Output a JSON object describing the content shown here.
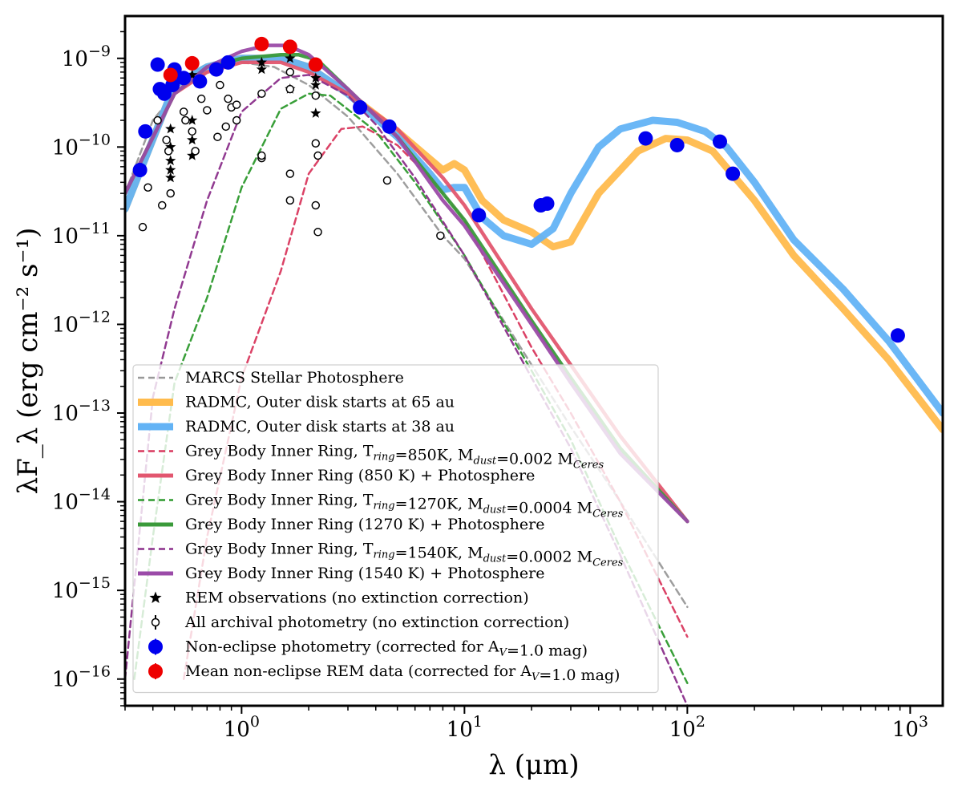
{
  "chart_data": {
    "type": "line",
    "xlabel": "λ (μm)",
    "ylabel": "λF_λ (erg cm⁻² s⁻¹)",
    "x_scale": "log",
    "y_scale": "log",
    "xlim": [
      0.3,
      1400
    ],
    "ylim": [
      5e-17,
      3e-09
    ],
    "grid": false,
    "legend_position": "lower-left",
    "x_ticks": [
      {
        "value": 1,
        "base": "10",
        "exp": "0"
      },
      {
        "value": 10,
        "base": "10",
        "exp": "1"
      },
      {
        "value": 100,
        "base": "10",
        "exp": "2"
      },
      {
        "value": 1000,
        "base": "10",
        "exp": "3"
      }
    ],
    "y_ticks": [
      {
        "value": 1e-16,
        "base": "10",
        "exp": "−16"
      },
      {
        "value": 1e-15,
        "base": "10",
        "exp": "−15"
      },
      {
        "value": 1e-14,
        "base": "10",
        "exp": "−14"
      },
      {
        "value": 1e-13,
        "base": "10",
        "exp": "−13"
      },
      {
        "value": 1e-12,
        "base": "10",
        "exp": "−12"
      },
      {
        "value": 1e-11,
        "base": "10",
        "exp": "−11"
      },
      {
        "value": 1e-10,
        "base": "10",
        "exp": "−10"
      },
      {
        "value": 1e-09,
        "base": "10",
        "exp": "−9"
      }
    ],
    "series": [
      {
        "name": "MARCS Stellar Photosphere",
        "color": "#999999",
        "style": "dashed",
        "width": 2.5,
        "x": [
          0.3,
          0.4,
          0.5,
          0.7,
          1.0,
          1.4,
          2.0,
          3.0,
          5.0,
          8.0,
          10,
          20,
          30,
          50,
          100
        ],
        "y": [
          3e-11,
          2e-10,
          4e-10,
          7e-10,
          9e-10,
          8e-10,
          5e-10,
          2.2e-10,
          5e-11,
          1e-11,
          5.5e-12,
          3.5e-13,
          7e-14,
          1e-14,
          6.5e-16
        ]
      },
      {
        "name": "RADMC, Outer disk starts at 65 au",
        "color": "#FFBB4D",
        "style": "solid",
        "width": 9,
        "x": [
          0.3,
          0.5,
          0.7,
          1.0,
          1.5,
          2.0,
          3.0,
          5.0,
          8.0,
          9.0,
          10,
          12,
          15,
          20,
          25,
          30,
          40,
          60,
          80,
          100,
          130,
          200,
          300,
          500,
          800,
          1400
        ],
        "y": [
          2e-11,
          5e-10,
          8e-10,
          1e-09,
          1e-09,
          8e-10,
          4e-10,
          1.5e-10,
          5.5e-11,
          6.5e-11,
          5.5e-11,
          2.5e-11,
          1.5e-11,
          1.1e-11,
          7.5e-12,
          8.5e-12,
          3e-11,
          9e-11,
          1.25e-10,
          1.2e-10,
          9e-11,
          2.5e-11,
          6e-12,
          1.5e-12,
          4e-13,
          6.5e-14
        ]
      },
      {
        "name": "RADMC, Outer disk starts at 38 au",
        "color": "#63B3F5",
        "style": "solid",
        "width": 9,
        "x": [
          0.3,
          0.5,
          0.7,
          1.0,
          1.5,
          2.0,
          3.0,
          5.0,
          7.0,
          8.0,
          9.0,
          10,
          12,
          15,
          20,
          25,
          30,
          40,
          50,
          70,
          90,
          120,
          150,
          200,
          300,
          500,
          800,
          1400
        ],
        "y": [
          2e-11,
          5e-10,
          8e-10,
          1e-09,
          1e-09,
          8e-10,
          4e-10,
          1.3e-10,
          5e-11,
          3.3e-11,
          3.5e-11,
          3.5e-11,
          1.6e-11,
          1e-11,
          8e-12,
          1.2e-11,
          3e-11,
          1e-10,
          1.6e-10,
          2e-10,
          1.9e-10,
          1.5e-10,
          1e-10,
          4e-11,
          9e-12,
          2.5e-12,
          6.5e-13,
          1e-13
        ]
      },
      {
        "name": "Grey Body Inner Ring, T_ring=850K, M_dust=0.002 M_Ceres",
        "color": "#D9385E",
        "style": "dashed",
        "width": 2.5,
        "x": [
          0.55,
          0.7,
          1.0,
          1.5,
          2.0,
          2.8,
          3.5,
          5.0,
          7.0,
          10,
          20,
          30,
          50,
          100
        ],
        "y": [
          1e-16,
          4e-15,
          2.5e-13,
          4e-12,
          5e-11,
          1.6e-10,
          1.7e-10,
          1.05e-10,
          4.5e-11,
          1.5e-11,
          5.5e-13,
          1e-13,
          1e-14,
          3e-16
        ]
      },
      {
        "name": "Grey Body Inner Ring (850 K) + Photosphere",
        "color": "#E2566F",
        "style": "solid",
        "width": 4.5,
        "x": [
          0.3,
          0.5,
          0.7,
          1.0,
          1.5,
          2.0,
          3.0,
          5.0,
          8.0,
          10,
          20,
          30,
          50,
          100
        ],
        "y": [
          3e-11,
          4e-10,
          7e-10,
          9e-10,
          9e-10,
          7e-10,
          4e-10,
          1.6e-10,
          4.5e-11,
          2.2e-11,
          1.5e-12,
          3.5e-13,
          5.5e-14,
          6e-15
        ]
      },
      {
        "name": "Grey Body Inner Ring, T_ring=1270K, M_dust=0.0004 M_Ceres",
        "color": "#2E9A2E",
        "style": "dashed",
        "width": 2.5,
        "x": [
          0.33,
          0.4,
          0.5,
          0.7,
          1.0,
          1.5,
          2.0,
          2.5,
          4.0,
          6.0,
          10,
          20,
          30,
          50,
          100
        ],
        "y": [
          1e-16,
          4e-15,
          2.2e-13,
          2e-12,
          3.5e-11,
          2.7e-10,
          4e-10,
          3.8e-10,
          1.5e-10,
          4e-11,
          6e-12,
          3e-13,
          5e-14,
          3e-15,
          9e-17
        ]
      },
      {
        "name": "Grey Body Inner Ring (1270 K) + Photosphere",
        "color": "#3A9A3A",
        "style": "solid",
        "width": 4.5,
        "x": [
          0.3,
          0.5,
          0.7,
          1.0,
          1.5,
          1.8,
          2.2,
          3.0,
          5.0,
          8.0,
          10,
          20,
          30,
          50,
          100
        ],
        "y": [
          3e-11,
          4e-10,
          8e-10,
          1e-09,
          1.1e-09,
          1.1e-09,
          9.5e-10,
          4.5e-10,
          1.3e-10,
          3e-11,
          1.5e-11,
          1.1e-12,
          2.5e-13,
          4e-14,
          6e-15
        ]
      },
      {
        "name": "Grey Body Inner Ring, T_ring=1540K, M_dust=0.0002 M_Ceres",
        "color": "#8B2F8B",
        "style": "dashed",
        "width": 2.5,
        "x": [
          0.3,
          0.4,
          0.5,
          0.7,
          1.0,
          1.5,
          2.0,
          3.0,
          4.0,
          6.0,
          10,
          20,
          30,
          50,
          100
        ],
        "y": [
          1e-16,
          1.5e-13,
          1.5e-12,
          2.5e-11,
          2.5e-10,
          6e-10,
          6.5e-10,
          3.8e-10,
          1.8e-10,
          4.5e-11,
          6e-12,
          2.5e-13,
          4e-14,
          2.5e-15,
          5e-17
        ]
      },
      {
        "name": "Grey Body Inner Ring (1540 K) + Photosphere",
        "color": "#9B4BA8",
        "style": "solid",
        "width": 4.5,
        "x": [
          0.3,
          0.5,
          0.7,
          1.0,
          1.3,
          1.6,
          2.0,
          3.0,
          5.0,
          8.0,
          10,
          20,
          30,
          50,
          100
        ],
        "y": [
          3e-11,
          4e-10,
          8e-10,
          1.2e-09,
          1.4e-09,
          1.4e-09,
          1.1e-09,
          4.5e-10,
          1.3e-10,
          2.5e-11,
          1.3e-11,
          1e-12,
          2.2e-13,
          3.5e-14,
          6e-15
        ]
      }
    ],
    "scatter_series": [
      {
        "name": "REM observations (no extinction correction)",
        "marker": "star",
        "color": "#000000",
        "x": [
          0.48,
          0.48,
          0.48,
          0.48,
          0.48,
          0.6,
          0.6,
          0.6,
          0.6,
          1.23,
          1.23,
          1.65,
          1.65,
          2.15,
          2.15,
          2.15,
          2.15
        ],
        "y": [
          1.6e-10,
          1e-10,
          7e-11,
          5.5e-11,
          4.5e-11,
          2e-10,
          1.2e-10,
          8e-11,
          6.5e-10,
          9e-10,
          7.5e-10,
          1e-09,
          4.5e-10,
          8e-10,
          6e-10,
          5e-10,
          2.4e-10
        ]
      },
      {
        "name": "All archival photometry (no extinction correction)",
        "marker": "open-circle",
        "color": "#000000",
        "x": [
          0.36,
          0.38,
          0.42,
          0.44,
          0.46,
          0.47,
          0.48,
          0.55,
          0.56,
          0.6,
          0.62,
          0.66,
          0.7,
          0.78,
          0.8,
          0.85,
          0.87,
          0.9,
          0.95,
          0.95,
          1.23,
          1.23,
          1.23,
          1.65,
          1.65,
          1.65,
          1.65,
          2.15,
          2.15,
          2.15,
          2.2,
          2.2,
          4.5,
          7.8
        ],
        "y": [
          1.25e-11,
          3.5e-11,
          2e-10,
          2.2e-11,
          1.2e-10,
          9e-11,
          3e-11,
          2.5e-10,
          2e-10,
          1.5e-10,
          9e-11,
          3.5e-10,
          2.6e-10,
          1.3e-10,
          5e-10,
          1.7e-10,
          3.5e-10,
          2.8e-10,
          2e-10,
          3e-10,
          7.5e-11,
          8e-11,
          4e-10,
          4.5e-10,
          5e-11,
          2.5e-11,
          7e-10,
          3.8e-10,
          1.1e-10,
          2.2e-11,
          8e-11,
          1.1e-11,
          4.2e-11,
          1e-11
        ]
      },
      {
        "name": "Non-eclipse photometry (corrected for A_V=1.0 mag)",
        "marker": "filled-circle",
        "color": "#0000EE",
        "x": [
          0.35,
          0.37,
          0.42,
          0.43,
          0.45,
          0.49,
          0.5,
          0.55,
          0.65,
          0.77,
          0.87,
          3.4,
          4.6,
          11.6,
          22,
          23.5,
          65,
          90,
          140,
          160,
          880
        ],
        "y": [
          5.5e-11,
          1.5e-10,
          8.5e-10,
          4.5e-10,
          4e-10,
          5e-10,
          7.5e-10,
          6e-10,
          5.5e-10,
          7.5e-10,
          9e-10,
          2.8e-10,
          1.7e-10,
          1.7e-11,
          2.2e-11,
          2.3e-11,
          1.25e-10,
          1.05e-10,
          1.15e-10,
          5e-11,
          7.5e-13
        ]
      },
      {
        "name": "Mean non-eclipse REM data (corrected for A_V=1.0 mag)",
        "marker": "filled-circle",
        "color": "#EE0000",
        "x": [
          0.48,
          0.6,
          1.23,
          1.65,
          2.15
        ],
        "y": [
          6.5e-10,
          8.8e-10,
          1.45e-09,
          1.35e-09,
          8.5e-10
        ]
      }
    ],
    "legend": [
      {
        "kind": "line",
        "color": "#999999",
        "style": "dashed",
        "width": 2.5,
        "label": "MARCS Stellar Photosphere"
      },
      {
        "kind": "line",
        "color": "#FFBB4D",
        "style": "solid",
        "width": 9,
        "label": "RADMC, Outer disk starts at 65 au"
      },
      {
        "kind": "line",
        "color": "#63B3F5",
        "style": "solid",
        "width": 9,
        "label": "RADMC, Outer disk starts at 38 au"
      },
      {
        "kind": "line",
        "color": "#D9385E",
        "style": "dashed",
        "width": 2.5,
        "label": "Grey Body Inner Ring, T<sub>ring</sub>=850K, M<sub>dust</sub>=0.002 M<sub>Ceres</sub>"
      },
      {
        "kind": "line",
        "color": "#E2566F",
        "style": "solid",
        "width": 5,
        "label": "Grey Body Inner Ring (850 K) + Photosphere"
      },
      {
        "kind": "line",
        "color": "#2E9A2E",
        "style": "dashed",
        "width": 2.5,
        "label": "Grey Body Inner Ring, T<sub>ring</sub>=1270K, M<sub>dust</sub>=0.0004 M<sub>Ceres</sub>"
      },
      {
        "kind": "line",
        "color": "#3A9A3A",
        "style": "solid",
        "width": 5,
        "label": "Grey Body Inner Ring (1270 K) + Photosphere"
      },
      {
        "kind": "line",
        "color": "#8B2F8B",
        "style": "dashed",
        "width": 2.5,
        "label": "Grey Body Inner Ring, T<sub>ring</sub>=1540K, M<sub>dust</sub>=0.0002 M<sub>Ceres</sub>"
      },
      {
        "kind": "line",
        "color": "#9B4BA8",
        "style": "solid",
        "width": 5,
        "label": "Grey Body Inner Ring (1540 K) + Photosphere"
      },
      {
        "kind": "star",
        "color": "#000000",
        "label": "REM observations (no extinction correction)"
      },
      {
        "kind": "open-circle",
        "color": "#000000",
        "label": "All archival photometry (no extinction correction)"
      },
      {
        "kind": "filled-circle",
        "color": "#0000EE",
        "label": "Non-eclipse photometry (corrected for A<sub>V</sub>=1.0 mag)"
      },
      {
        "kind": "filled-circle",
        "color": "#EE0000",
        "label": "Mean non-eclipse REM data (corrected for A<sub>V</sub>=1.0 mag)"
      }
    ]
  }
}
